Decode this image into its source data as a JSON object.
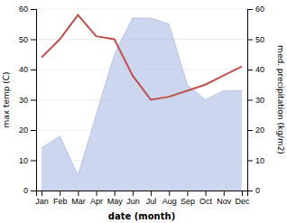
{
  "chart_data": {
    "type": "line",
    "xlabel": "date (month)",
    "ylabel": "max temp (C)",
    "y2label": "med. precipitation (kg/m2)",
    "categories": [
      "Jan",
      "Feb",
      "Mar",
      "Apr",
      "May",
      "Jun",
      "Jul",
      "Aug",
      "Sep",
      "Oct",
      "Nov",
      "Dec"
    ],
    "series": [
      {
        "type": "area",
        "axis": "y2",
        "color": "#b8c4e8",
        "values": [
          14,
          18,
          5,
          25,
          45,
          57,
          57,
          55,
          35,
          30,
          33,
          33
        ]
      },
      {
        "type": "line",
        "color": "#c0504d",
        "values": [
          44,
          50,
          58,
          51,
          50,
          38,
          30,
          31,
          33,
          35,
          38,
          41
        ]
      }
    ],
    "ylim": [
      0,
      60
    ],
    "yticks": [
      0,
      10,
      20,
      30,
      40,
      50,
      60
    ],
    "y2lim": [
      0,
      60
    ],
    "y2ticks": [
      0,
      10,
      20,
      30,
      40,
      50,
      60
    ],
    "grid": true
  }
}
